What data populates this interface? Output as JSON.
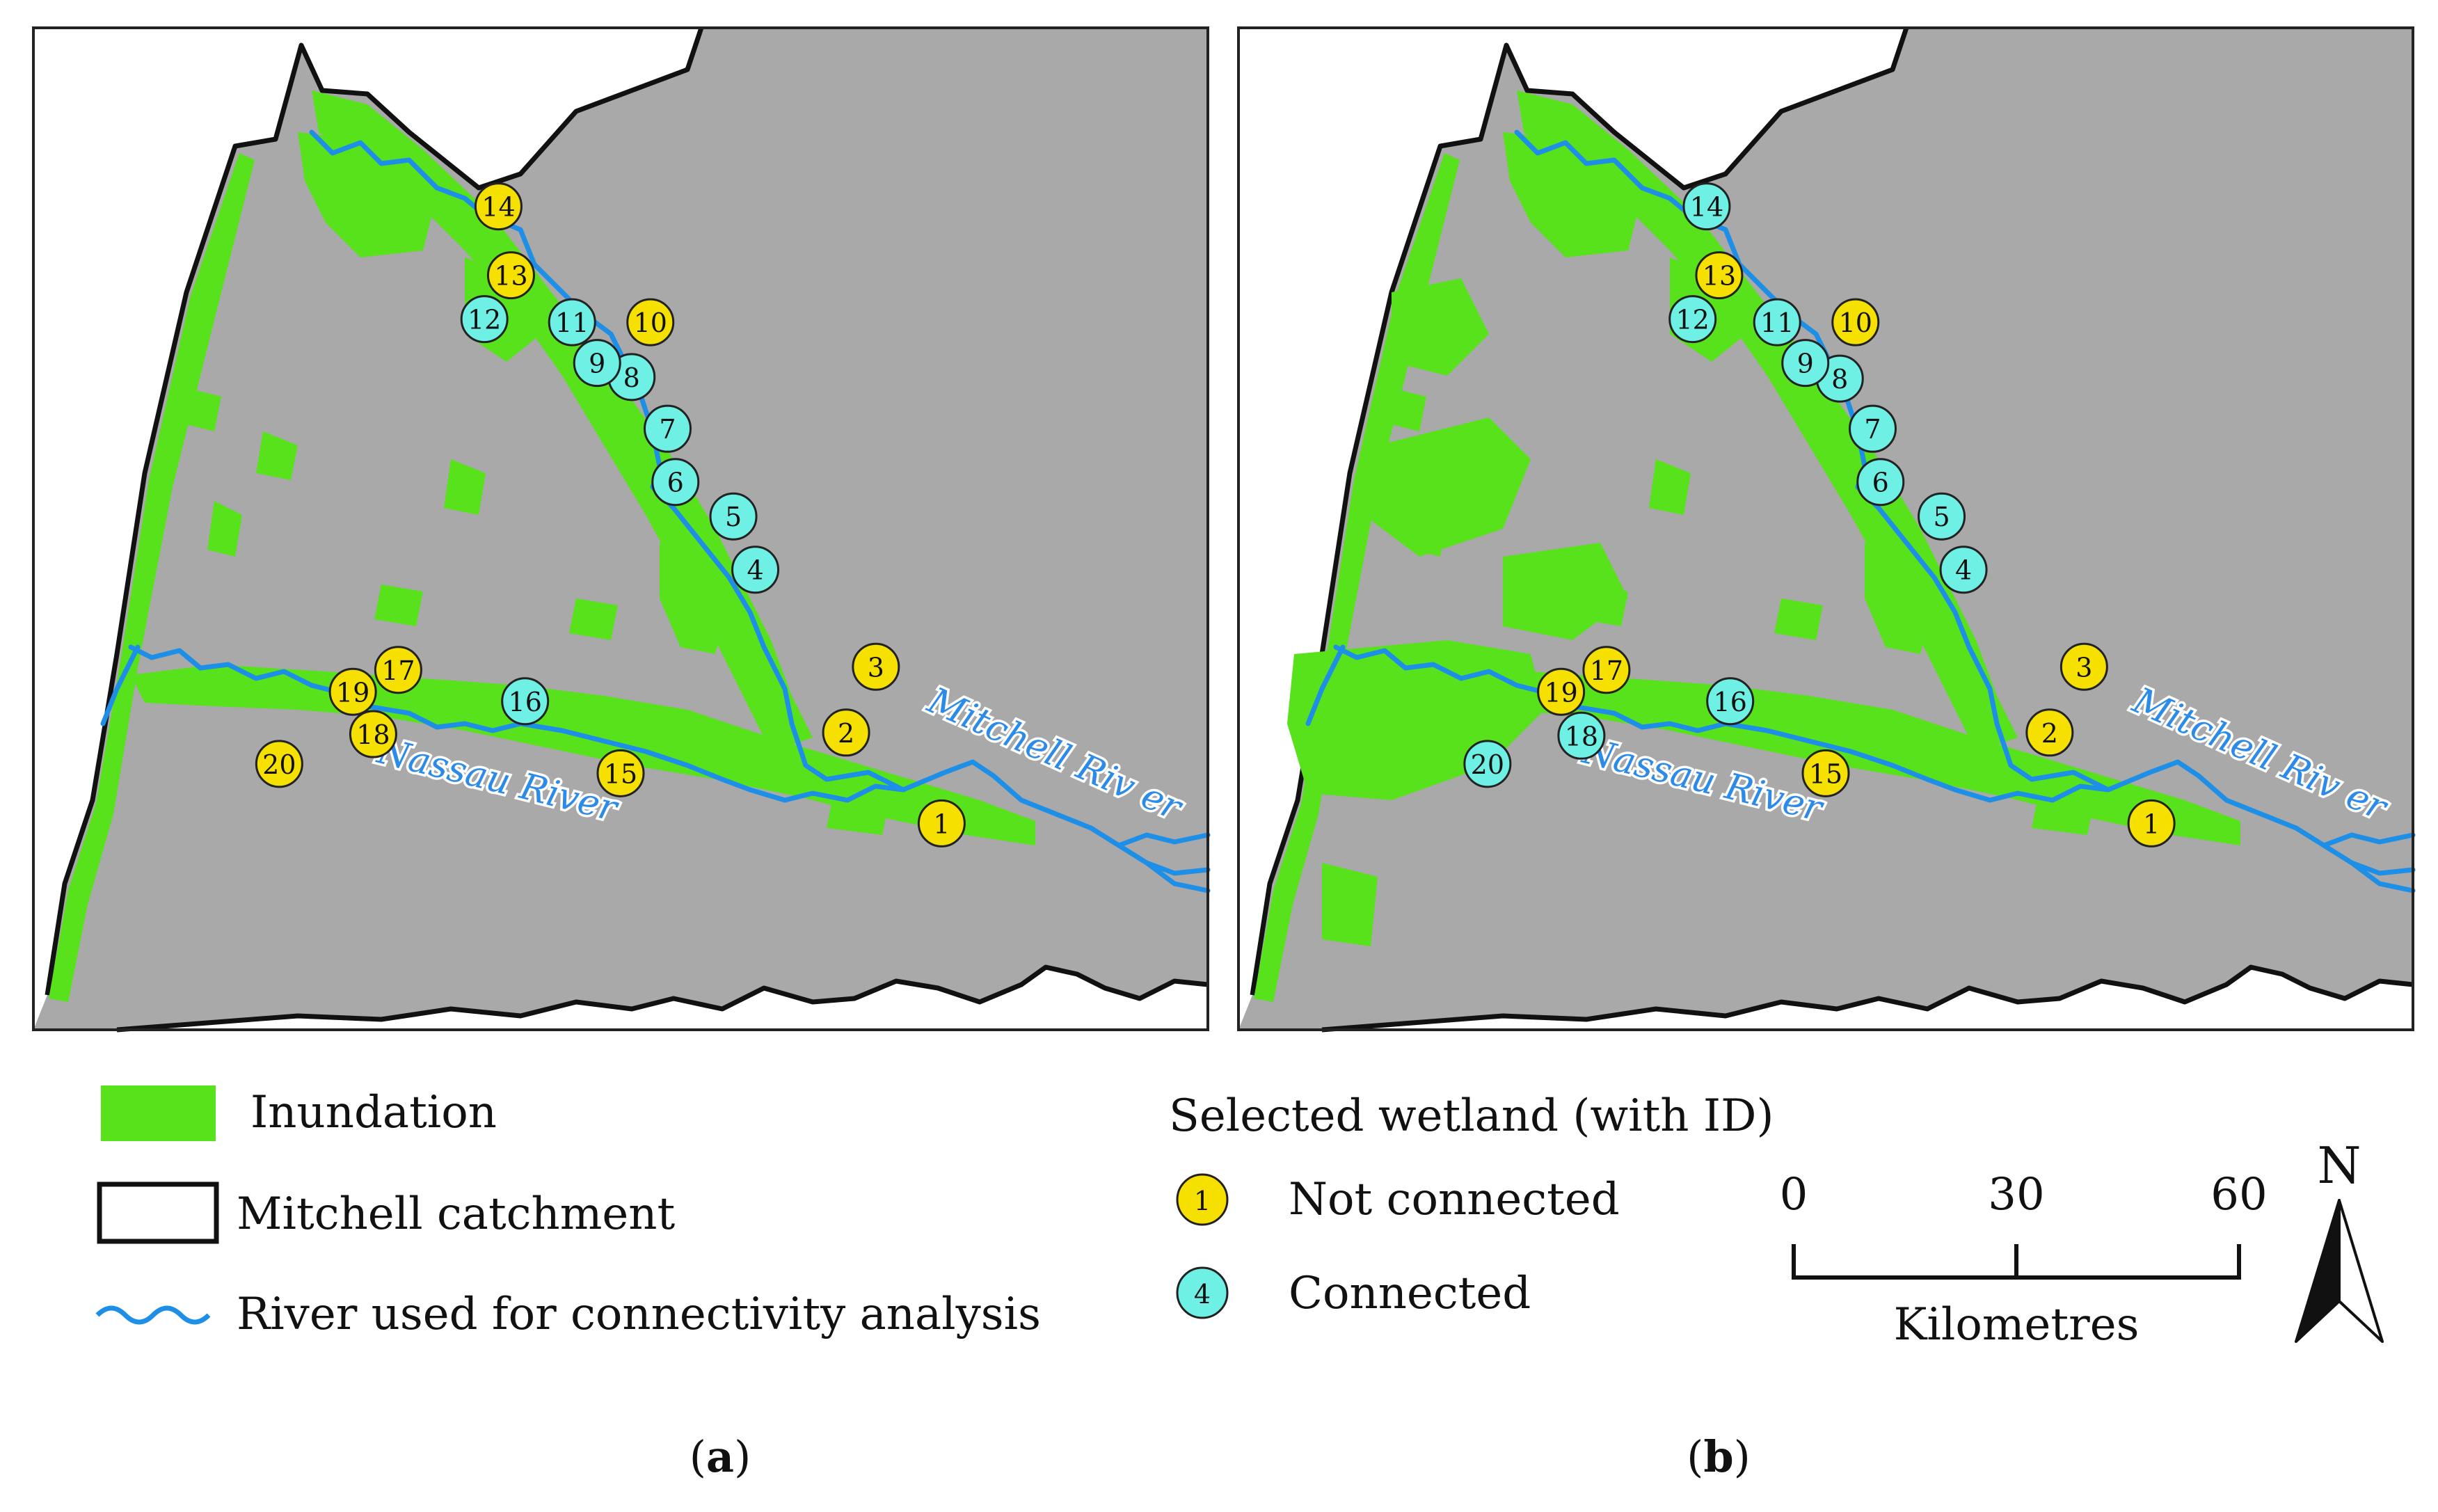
{
  "colors": {
    "inundation": "#58e21c",
    "terrain": "#a9a9a9",
    "river": "#1e8fe6",
    "not_connected": "#f5e000",
    "connected": "#6ff0e4",
    "catchment_boundary": "#111111"
  },
  "panels": [
    {
      "id": "a",
      "caption_letter": "a",
      "extra_inundation": false,
      "wetlands": [
        {
          "id": "1",
          "status": "not_connected"
        },
        {
          "id": "2",
          "status": "not_connected"
        },
        {
          "id": "3",
          "status": "not_connected"
        },
        {
          "id": "4",
          "status": "connected"
        },
        {
          "id": "5",
          "status": "connected"
        },
        {
          "id": "6",
          "status": "connected"
        },
        {
          "id": "7",
          "status": "connected"
        },
        {
          "id": "8",
          "status": "connected"
        },
        {
          "id": "9",
          "status": "connected"
        },
        {
          "id": "10",
          "status": "not_connected"
        },
        {
          "id": "11",
          "status": "connected"
        },
        {
          "id": "12",
          "status": "connected"
        },
        {
          "id": "13",
          "status": "not_connected"
        },
        {
          "id": "14",
          "status": "not_connected"
        },
        {
          "id": "15",
          "status": "not_connected"
        },
        {
          "id": "16",
          "status": "connected"
        },
        {
          "id": "17",
          "status": "not_connected"
        },
        {
          "id": "18",
          "status": "not_connected"
        },
        {
          "id": "19",
          "status": "not_connected"
        },
        {
          "id": "20",
          "status": "not_connected"
        }
      ]
    },
    {
      "id": "b",
      "caption_letter": "b",
      "extra_inundation": true,
      "wetlands": [
        {
          "id": "1",
          "status": "not_connected"
        },
        {
          "id": "2",
          "status": "not_connected"
        },
        {
          "id": "3",
          "status": "not_connected"
        },
        {
          "id": "4",
          "status": "connected"
        },
        {
          "id": "5",
          "status": "connected"
        },
        {
          "id": "6",
          "status": "connected"
        },
        {
          "id": "7",
          "status": "connected"
        },
        {
          "id": "8",
          "status": "connected"
        },
        {
          "id": "9",
          "status": "connected"
        },
        {
          "id": "10",
          "status": "not_connected"
        },
        {
          "id": "11",
          "status": "connected"
        },
        {
          "id": "12",
          "status": "connected"
        },
        {
          "id": "13",
          "status": "not_connected"
        },
        {
          "id": "14",
          "status": "connected"
        },
        {
          "id": "15",
          "status": "not_connected"
        },
        {
          "id": "16",
          "status": "connected"
        },
        {
          "id": "17",
          "status": "not_connected"
        },
        {
          "id": "18",
          "status": "connected"
        },
        {
          "id": "19",
          "status": "not_connected"
        },
        {
          "id": "20",
          "status": "connected"
        }
      ]
    }
  ],
  "river_labels": {
    "nassau": "Nassau River",
    "mitchell": "Mitchell Riv er"
  },
  "legend": {
    "inundation": "Inundation",
    "catchment": "Mitchell catchment",
    "river": "River used for connectivity analysis",
    "wetland_title": "Selected wetland (with ID)",
    "not_connected_label": "Not connected",
    "not_connected_example": "1",
    "connected_label": "Connected",
    "connected_example": "4"
  },
  "scale_bar": {
    "ticks": [
      "0",
      "30",
      "60"
    ],
    "unit": "Kilometres"
  },
  "north_arrow": {
    "label": "N"
  }
}
